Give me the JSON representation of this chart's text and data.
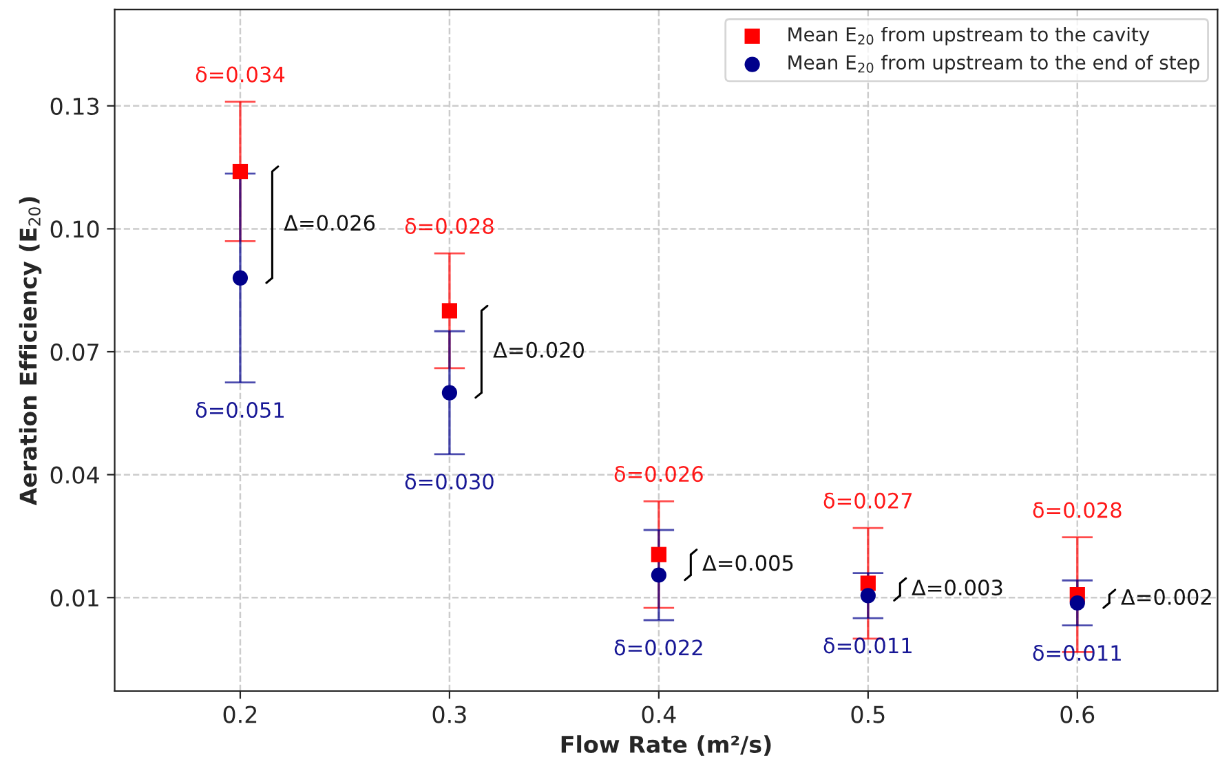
{
  "chart_data": {
    "type": "scatter",
    "xlabel": "Flow Rate (m²/s)",
    "ylabel": "Aeration Efficiency (E$_{20}$)",
    "xlim": [
      0.14,
      0.667
    ],
    "ylim": [
      -0.0128,
      0.1535
    ],
    "xticks": [
      {
        "value": 0.2,
        "label": "0.2"
      },
      {
        "value": 0.3,
        "label": "0.3"
      },
      {
        "value": 0.4,
        "label": "0.4"
      },
      {
        "value": 0.5,
        "label": "0.5"
      },
      {
        "value": 0.6,
        "label": "0.6"
      }
    ],
    "yticks": [
      0.01,
      0.04,
      0.07,
      {
        "value": 0.1,
        "label": "0.10"
      },
      0.13
    ],
    "grid": true,
    "legend": "top right",
    "series": [
      {
        "name": "Mean E$_{20}$ from upstream to the cavity",
        "color": "#ff0000",
        "marker": "square",
        "x": [
          0.2,
          0.3,
          0.4,
          0.5,
          0.6
        ],
        "values": [
          0.114,
          0.08,
          0.0205,
          0.0135,
          0.0107
        ],
        "errors": [
          0.017,
          0.014,
          0.013,
          0.0135,
          0.014
        ]
      },
      {
        "name": "Mean E$_{20}$ from upstream to the end of step",
        "color": "#00008b",
        "marker": "circle",
        "x": [
          0.2,
          0.3,
          0.4,
          0.5,
          0.6
        ],
        "values": [
          0.088,
          0.06,
          0.0155,
          0.0105,
          0.0087
        ],
        "errors": [
          0.0255,
          0.015,
          0.011,
          0.0055,
          0.0055
        ]
      }
    ],
    "annotations": [
      {
        "text": "δ=0.034",
        "x": 0.2,
        "y": 0.131
      },
      {
        "text": "δ=0.028",
        "x": 0.3,
        "y": 0.094
      },
      {
        "text": "δ=0.026",
        "x": 0.4,
        "y": 0.0335
      },
      {
        "text": "δ=0.027",
        "x": 0.5,
        "y": 0.027
      },
      {
        "text": "δ=0.028",
        "x": 0.6,
        "y": 0.0247
      },
      {
        "text": "δ=0.051",
        "x": 0.2,
        "y": 0.0625
      },
      {
        "text": "δ=0.030",
        "x": 0.3,
        "y": 0.045
      },
      {
        "text": "δ=0.022",
        "x": 0.4,
        "y": 0.0045
      },
      {
        "text": "δ=0.011",
        "x": 0.5,
        "y": 0.005
      },
      {
        "text": "δ=0.011",
        "x": 0.6,
        "y": 0.0032
      },
      {
        "text": "Δ=0.026",
        "x": 0.2,
        "y": 0.101
      },
      {
        "text": "Δ=0.020",
        "x": 0.3,
        "y": 0.07
      },
      {
        "text": "Δ=0.005",
        "x": 0.4,
        "y": 0.018
      },
      {
        "text": "Δ=0.003",
        "x": 0.5,
        "y": 0.012
      },
      {
        "text": "Δ=0.002",
        "x": 0.6,
        "y": 0.0097
      }
    ]
  }
}
